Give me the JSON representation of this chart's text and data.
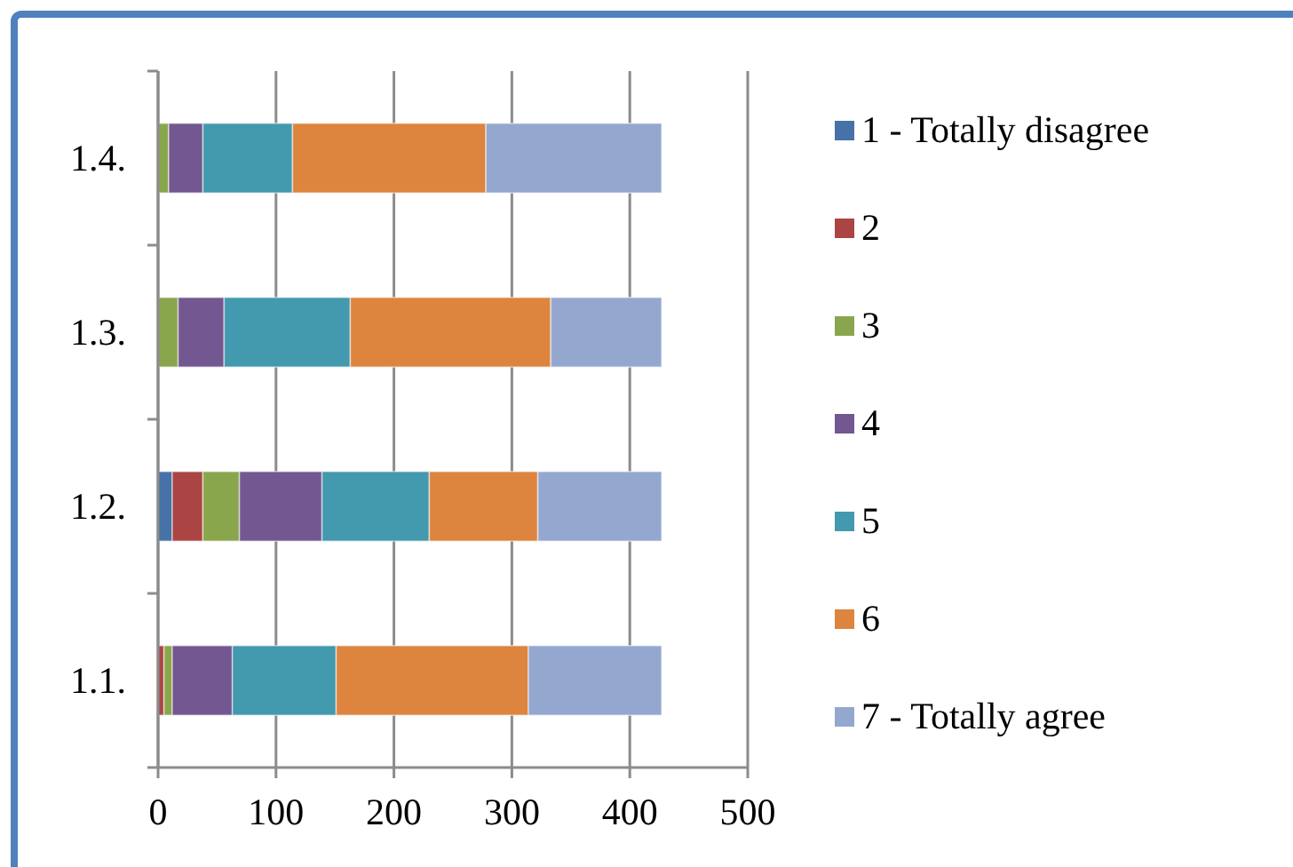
{
  "chart_data": {
    "type": "bar",
    "orientation": "horizontal",
    "stacked": true,
    "categories": [
      "1.4.",
      "1.3.",
      "1.2.",
      "1.1."
    ],
    "series": [
      {
        "name": "1 - Totally disagree",
        "color": "#4672a8",
        "values": [
          null,
          null,
          12,
          null
        ]
      },
      {
        "name": "2",
        "color": "#aa4544",
        "values": [
          null,
          null,
          26,
          5
        ]
      },
      {
        "name": "3",
        "color": "#8aa64d",
        "values": [
          9,
          17,
          31,
          7
        ]
      },
      {
        "name": "4",
        "color": "#735790",
        "values": [
          29,
          39,
          70,
          51
        ]
      },
      {
        "name": "5",
        "color": "#4399ae",
        "values": [
          76,
          107,
          91,
          88
        ]
      },
      {
        "name": "6",
        "color": "#dd843e",
        "values": [
          164,
          170,
          92,
          163
        ]
      },
      {
        "name": "7 - Totally agree",
        "color": "#94a8cf",
        "values": [
          149,
          94,
          105,
          113
        ]
      }
    ],
    "xlim": [
      0,
      500
    ],
    "xticks": [
      0,
      100,
      200,
      300,
      400,
      500
    ],
    "grid": "x",
    "legend": "right"
  }
}
